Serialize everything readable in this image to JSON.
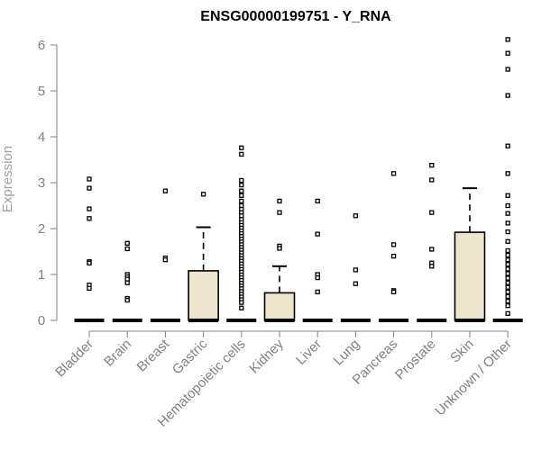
{
  "chart_data": {
    "type": "box",
    "title": "ENSG00000199751 - Y_RNA",
    "ylabel": "Expression",
    "xlabel": "",
    "ylim": [
      0,
      6.2
    ],
    "yticks": [
      0,
      1,
      2,
      3,
      4,
      5,
      6
    ],
    "grid": false,
    "colors": {
      "box_fill": "#ede6cc",
      "axis": "#808080",
      "outline": "#000000"
    },
    "categories": [
      {
        "name": "Bladder",
        "q1": 0,
        "median": 0,
        "q3": 0,
        "upper_whisker": 0,
        "outliers": [
          3.08,
          2.88,
          2.43,
          2.22,
          1.28,
          1.25,
          0.77,
          0.7
        ]
      },
      {
        "name": "Brain",
        "q1": 0,
        "median": 0,
        "q3": 0,
        "upper_whisker": 0,
        "outliers": [
          1.68,
          1.56,
          1.0,
          0.95,
          0.9,
          0.82,
          0.48,
          0.44
        ]
      },
      {
        "name": "Breast",
        "q1": 0,
        "median": 0,
        "q3": 0,
        "upper_whisker": 0,
        "outliers": [
          2.82,
          1.36,
          1.32
        ]
      },
      {
        "name": "Gastric",
        "q1": 0,
        "median": 0,
        "q3": 1.08,
        "upper_whisker": 2.03,
        "outliers": [
          2.75
        ]
      },
      {
        "name": "Hematopoietic cells",
        "q1": 0,
        "median": 0,
        "q3": 0,
        "upper_whisker": 0,
        "outliers": [
          3.76,
          3.62,
          3.05,
          2.95,
          2.82,
          2.72,
          2.6,
          2.5,
          2.42,
          2.35,
          2.28,
          2.2,
          2.13,
          2.07,
          2.01,
          1.95,
          1.89,
          1.83,
          1.77,
          1.71,
          1.65,
          1.59,
          1.53,
          1.47,
          1.41,
          1.35,
          1.29,
          1.23,
          1.17,
          1.11,
          1.05,
          0.99,
          0.93,
          0.87,
          0.81,
          0.75,
          0.69,
          0.63,
          0.57,
          0.51,
          0.45,
          0.39,
          0.27
        ]
      },
      {
        "name": "Kidney",
        "q1": 0,
        "median": 0,
        "q3": 0.6,
        "upper_whisker": 1.18,
        "outliers": [
          2.6,
          2.35,
          1.62,
          1.57
        ]
      },
      {
        "name": "Liver",
        "q1": 0,
        "median": 0,
        "q3": 0,
        "upper_whisker": 0,
        "outliers": [
          2.6,
          1.88,
          1.0,
          0.93,
          0.62
        ]
      },
      {
        "name": "Lung",
        "q1": 0,
        "median": 0,
        "q3": 0,
        "upper_whisker": 0,
        "outliers": [
          2.28,
          1.1,
          0.8
        ]
      },
      {
        "name": "Pancreas",
        "q1": 0,
        "median": 0,
        "q3": 0,
        "upper_whisker": 0,
        "outliers": [
          3.2,
          1.65,
          1.4,
          0.65,
          0.62
        ]
      },
      {
        "name": "Prostate",
        "q1": 0,
        "median": 0,
        "q3": 0,
        "upper_whisker": 0,
        "outliers": [
          3.38,
          3.06,
          2.35,
          1.55,
          1.25,
          1.18
        ]
      },
      {
        "name": "Skin",
        "q1": 0,
        "median": 0,
        "q3": 1.92,
        "upper_whisker": 2.88,
        "outliers": []
      },
      {
        "name": "Unknown / Other",
        "q1": 0,
        "median": 0,
        "q3": 0,
        "upper_whisker": 0,
        "outliers": [
          6.12,
          5.82,
          5.47,
          4.9,
          3.8,
          3.2,
          2.72,
          2.5,
          2.33,
          2.12,
          1.93,
          1.72,
          1.52,
          1.42,
          1.32,
          1.22,
          1.12,
          1.02,
          0.92,
          0.82,
          0.72,
          0.62,
          0.52,
          0.42,
          0.32,
          0.15
        ]
      }
    ]
  }
}
